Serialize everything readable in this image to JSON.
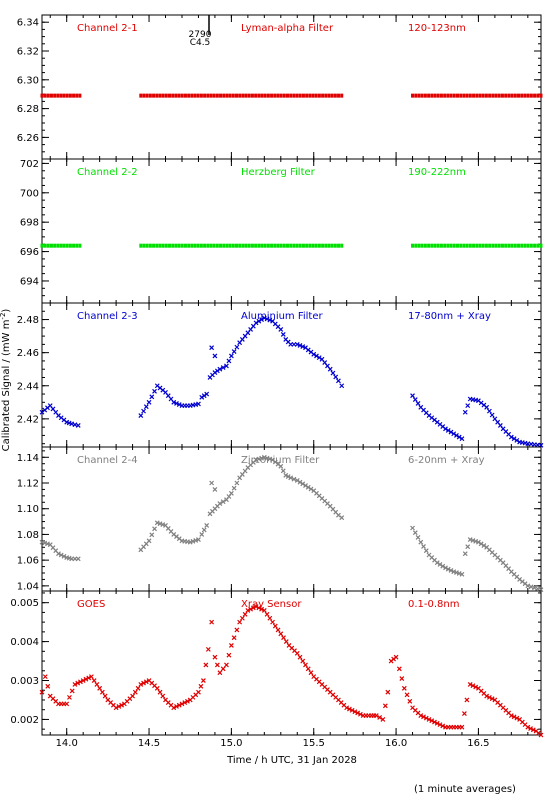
{
  "colors": {
    "background": "#ffffff",
    "axis": "#000000",
    "ch21": "#e00000",
    "ch22": "#00e000",
    "ch23": "#0000d0",
    "ch24": "#808080",
    "goes": "#e00000"
  },
  "figure": {
    "ylabel": "Calibrated Signal / (mW m",
    "ylabel_sup": "-2",
    "ylabel_close": ")",
    "xlabel": "Time / h UTC, 31 Jan 2028",
    "footer": "(1 minute averages)",
    "marker_text_1": "2790",
    "marker_text_2": "C4.5"
  },
  "chart_data": [
    {
      "type": "scatter",
      "channel": "Channel 2-1",
      "filter": "Lyman-alpha Filter",
      "band": "120-123nm",
      "color": "#e00000",
      "xlim": [
        13.85,
        16.88
      ],
      "ylim": [
        6.245,
        6.345
      ],
      "yticks": [
        6.26,
        6.28,
        6.3,
        6.32,
        6.34
      ],
      "ytick_labels": [
        "6.26",
        "6.28",
        "6.30",
        "6.32",
        "6.34"
      ],
      "yminor": 0.005,
      "series": [
        {
          "x": [
            13.85,
            14.08
          ],
          "y": [
            6.289,
            6.289
          ]
        },
        {
          "x": [
            14.45,
            15.67
          ],
          "y": [
            6.289,
            6.289
          ]
        },
        {
          "x": [
            16.1,
            16.88
          ],
          "y": [
            6.289,
            6.289
          ]
        }
      ]
    },
    {
      "type": "scatter",
      "channel": "Channel 2-2",
      "filter": "Herzberg Filter",
      "band": "190-222nm",
      "color": "#00e000",
      "xlim": [
        13.85,
        16.88
      ],
      "ylim": [
        692.5,
        702.3
      ],
      "yticks": [
        694,
        696,
        698,
        700,
        702
      ],
      "ytick_labels": [
        "694",
        "696",
        "698",
        "700",
        "702"
      ],
      "yminor": 0.5,
      "series": [
        {
          "x": [
            13.85,
            14.08
          ],
          "y": [
            696.4,
            696.4
          ]
        },
        {
          "x": [
            14.45,
            15.67
          ],
          "y": [
            696.4,
            696.4
          ]
        },
        {
          "x": [
            16.1,
            16.88
          ],
          "y": [
            696.4,
            696.4
          ]
        }
      ]
    },
    {
      "type": "scatter",
      "channel": "Channel 2-3",
      "filter": "Aluminium Filter",
      "band": "17-80nm + Xray",
      "color": "#0000d0",
      "xlim": [
        13.85,
        16.88
      ],
      "ylim": [
        2.403,
        2.49
      ],
      "yticks": [
        2.42,
        2.44,
        2.46,
        2.48
      ],
      "ytick_labels": [
        "2.42",
        "2.44",
        "2.46",
        "2.48"
      ],
      "yminor": 0.005,
      "series": [
        {
          "x": [
            13.85,
            13.9,
            13.95,
            14.0,
            14.03,
            14.07
          ],
          "y": [
            2.424,
            2.428,
            2.422,
            2.418,
            2.417,
            2.416
          ]
        },
        {
          "x": [
            14.45,
            14.5,
            14.55,
            14.6,
            14.65,
            14.7,
            14.75,
            14.8,
            14.82,
            14.85
          ],
          "y": [
            2.422,
            2.43,
            2.44,
            2.436,
            2.43,
            2.428,
            2.428,
            2.429,
            2.433,
            2.435
          ]
        },
        {
          "x": [
            14.88,
            14.9
          ],
          "y": [
            2.463,
            2.458
          ]
        },
        {
          "x": [
            14.87,
            14.9,
            14.93,
            14.97,
            15.0,
            15.05,
            15.1,
            15.15,
            15.2,
            15.25,
            15.3,
            15.33,
            15.36,
            15.4,
            15.45,
            15.5,
            15.55,
            15.6,
            15.65,
            15.67
          ],
          "y": [
            2.445,
            2.448,
            2.45,
            2.452,
            2.458,
            2.466,
            2.472,
            2.478,
            2.481,
            2.479,
            2.474,
            2.468,
            2.465,
            2.465,
            2.463,
            2.459,
            2.456,
            2.45,
            2.443,
            2.44
          ]
        },
        {
          "x": [
            16.1,
            16.15,
            16.2,
            16.25,
            16.3,
            16.35,
            16.4
          ],
          "y": [
            2.434,
            2.427,
            2.422,
            2.418,
            2.414,
            2.411,
            2.408
          ]
        },
        {
          "x": [
            16.42,
            16.45,
            16.5,
            16.55,
            16.6,
            16.65,
            16.7,
            16.75,
            16.8,
            16.88
          ],
          "y": [
            2.424,
            2.432,
            2.431,
            2.427,
            2.42,
            2.414,
            2.409,
            2.406,
            2.405,
            2.404
          ]
        }
      ]
    },
    {
      "type": "scatter",
      "channel": "Channel 2-4",
      "filter": "Zirconium Filter",
      "band": "6-20nm + Xray",
      "color": "#808080",
      "xlim": [
        13.85,
        16.88
      ],
      "ylim": [
        1.036,
        1.148
      ],
      "yticks": [
        1.04,
        1.06,
        1.08,
        1.1,
        1.12,
        1.14
      ],
      "ytick_labels": [
        "1.04",
        "1.06",
        "1.08",
        "1.10",
        "1.12",
        "1.14"
      ],
      "yminor": 0.005,
      "series": [
        {
          "x": [
            13.85,
            13.9,
            13.95,
            14.0,
            14.03,
            14.07
          ],
          "y": [
            1.074,
            1.072,
            1.065,
            1.062,
            1.061,
            1.061
          ]
        },
        {
          "x": [
            14.45,
            14.5,
            14.55,
            14.6,
            14.65,
            14.7,
            14.75,
            14.8,
            14.82,
            14.85
          ],
          "y": [
            1.068,
            1.075,
            1.089,
            1.087,
            1.08,
            1.075,
            1.074,
            1.076,
            1.08,
            1.087
          ]
        },
        {
          "x": [
            14.88,
            14.9
          ],
          "y": [
            1.12,
            1.115
          ]
        },
        {
          "x": [
            14.87,
            14.9,
            14.93,
            14.97,
            15.0,
            15.05,
            15.1,
            15.15,
            15.2,
            15.25,
            15.3,
            15.33,
            15.36,
            15.4,
            15.45,
            15.5,
            15.55,
            15.6,
            15.65,
            15.67
          ],
          "y": [
            1.096,
            1.1,
            1.104,
            1.107,
            1.112,
            1.124,
            1.132,
            1.138,
            1.14,
            1.138,
            1.133,
            1.126,
            1.124,
            1.122,
            1.118,
            1.114,
            1.108,
            1.102,
            1.095,
            1.093
          ]
        },
        {
          "x": [
            16.1,
            16.15,
            16.2,
            16.25,
            16.3,
            16.35,
            16.4
          ],
          "y": [
            1.085,
            1.074,
            1.064,
            1.058,
            1.054,
            1.051,
            1.049
          ]
        },
        {
          "x": [
            16.42,
            16.45,
            16.5,
            16.55,
            16.6,
            16.65,
            16.7,
            16.75,
            16.8,
            16.88
          ],
          "y": [
            1.065,
            1.076,
            1.074,
            1.07,
            1.064,
            1.058,
            1.051,
            1.045,
            1.04,
            1.037
          ]
        }
      ]
    },
    {
      "type": "scatter",
      "channel": "GOES",
      "filter": "Xray Sensor",
      "band": "0.1-0.8nm",
      "color": "#e00000",
      "xlim": [
        13.85,
        16.88
      ],
      "ylim": [
        0.0016,
        0.0053
      ],
      "yticks": [
        0.002,
        0.003,
        0.004,
        0.005
      ],
      "ytick_labels": [
        "0.002",
        "0.003",
        "0.004",
        "0.005"
      ],
      "yminor": 0.00025,
      "xticks": [
        14.0,
        14.5,
        15.0,
        15.5,
        16.0,
        16.5
      ],
      "xtick_labels": [
        "14.0",
        "14.5",
        "15.0",
        "15.5",
        "16.0",
        "16.5"
      ],
      "xminor": 0.1,
      "series": [
        {
          "x": [
            13.85,
            13.87,
            13.9,
            13.95,
            14.0,
            14.05,
            14.1,
            14.15,
            14.2,
            14.25,
            14.3,
            14.35,
            14.4,
            14.45,
            14.5,
            14.55,
            14.6,
            14.65,
            14.7,
            14.75,
            14.8,
            14.83,
            14.86,
            14.88,
            14.9,
            14.93,
            14.97,
            15.0,
            15.05,
            15.1,
            15.15,
            15.2,
            15.25,
            15.3,
            15.35,
            15.4,
            15.45,
            15.5,
            15.55,
            15.6,
            15.65,
            15.7,
            15.75,
            15.8,
            15.85,
            15.88,
            15.92,
            15.95,
            15.97,
            16.0,
            16.02,
            16.05,
            16.1,
            16.15,
            16.2,
            16.25,
            16.3,
            16.35,
            16.4,
            16.43,
            16.45,
            16.5,
            16.55,
            16.6,
            16.65,
            16.7,
            16.75,
            16.8,
            16.85,
            16.88
          ],
          "y": [
            0.0027,
            0.0031,
            0.0026,
            0.0024,
            0.0024,
            0.0029,
            0.003,
            0.0031,
            0.0028,
            0.0025,
            0.0023,
            0.0024,
            0.0026,
            0.0029,
            0.003,
            0.0028,
            0.0025,
            0.0023,
            0.0024,
            0.0025,
            0.0027,
            0.003,
            0.0038,
            0.0045,
            0.0036,
            0.0032,
            0.0034,
            0.0039,
            0.0045,
            0.0048,
            0.0049,
            0.0048,
            0.0045,
            0.0042,
            0.0039,
            0.0037,
            0.0034,
            0.0031,
            0.0029,
            0.0027,
            0.0025,
            0.0023,
            0.0022,
            0.0021,
            0.0021,
            0.0021,
            0.002,
            0.0027,
            0.0035,
            0.0036,
            0.0033,
            0.0028,
            0.0023,
            0.0021,
            0.002,
            0.0019,
            0.0018,
            0.0018,
            0.0018,
            0.0025,
            0.0029,
            0.0028,
            0.0026,
            0.0025,
            0.0023,
            0.0021,
            0.002,
            0.0018,
            0.0017,
            0.0016
          ]
        }
      ]
    }
  ]
}
